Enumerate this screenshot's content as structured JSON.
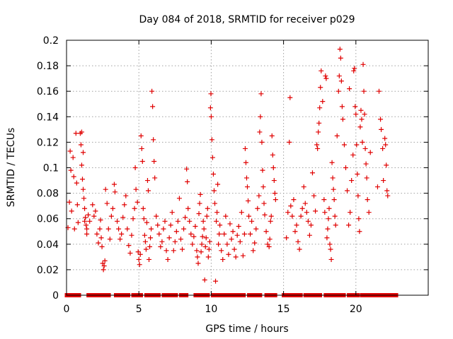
{
  "chart_data": {
    "type": "scatter",
    "title": "Day 084 of 2018, SRMTID for receiver p029",
    "xlabel": "GPS time / hours",
    "ylabel": "SRMTID / TECUs",
    "xlim": [
      0,
      25
    ],
    "ylim": [
      0,
      0.2
    ],
    "x_ticks": [
      0,
      5,
      10,
      15,
      20
    ],
    "x_tick_labels": [
      "0",
      "5",
      "10",
      "15",
      "20"
    ],
    "y_ticks": [
      0,
      0.02,
      0.04,
      0.06,
      0.08,
      0.1,
      0.12,
      0.14,
      0.16,
      0.18,
      0.2
    ],
    "y_tick_labels": [
      "0",
      "0.02",
      "0.04",
      "0.06",
      "0.08",
      "0.1",
      "0.12",
      "0.14",
      "0.16",
      "0.18",
      "0.2"
    ],
    "grid": true,
    "marker": "plus",
    "color": "#e00000",
    "zero_runs": [
      [
        0.0,
        0.9
      ],
      [
        1.5,
        3.0
      ],
      [
        3.4,
        4.3
      ],
      [
        4.6,
        5.2
      ],
      [
        5.5,
        6.4
      ],
      [
        6.7,
        7.6
      ],
      [
        7.9,
        8.3
      ],
      [
        8.9,
        9.8
      ],
      [
        10.1,
        11.1
      ],
      [
        11.3,
        12.3
      ],
      [
        12.6,
        13.4
      ],
      [
        13.8,
        14.5
      ],
      [
        15.0,
        16.2
      ],
      [
        16.5,
        17.6
      ],
      [
        17.9,
        19.2
      ],
      [
        19.5,
        20.2
      ],
      [
        20.4,
        22.8
      ]
    ],
    "series": [
      {
        "name": "SRMTID",
        "points": [
          [
            0.1,
            0.053
          ],
          [
            0.2,
            0.073
          ],
          [
            0.25,
            0.113
          ],
          [
            0.3,
            0.098
          ],
          [
            0.35,
            0.066
          ],
          [
            0.45,
            0.108
          ],
          [
            0.5,
            0.093
          ],
          [
            0.55,
            0.052
          ],
          [
            0.65,
            0.127
          ],
          [
            0.7,
            0.088
          ],
          [
            0.75,
            0.071
          ],
          [
            0.8,
            0.057
          ],
          [
            0.95,
            0.127
          ],
          [
            1.0,
            0.118
          ],
          [
            1.05,
            0.102
          ],
          [
            1.1,
            0.091
          ],
          [
            1.15,
            0.083
          ],
          [
            1.2,
            0.076
          ],
          [
            1.25,
            0.068
          ],
          [
            1.3,
            0.061
          ],
          [
            1.35,
            0.055
          ],
          [
            1.4,
            0.048
          ],
          [
            1.05,
            0.128
          ],
          [
            1.15,
            0.112
          ],
          [
            1.25,
            0.058
          ],
          [
            1.4,
            0.052
          ],
          [
            1.5,
            0.063
          ],
          [
            1.6,
            0.058
          ],
          [
            1.8,
            0.071
          ],
          [
            1.9,
            0.062
          ],
          [
            2.0,
            0.066
          ],
          [
            2.1,
            0.048
          ],
          [
            2.2,
            0.041
          ],
          [
            2.3,
            0.052
          ],
          [
            2.35,
            0.059
          ],
          [
            2.4,
            0.045
          ],
          [
            2.45,
            0.038
          ],
          [
            2.5,
            0.025
          ],
          [
            2.55,
            0.02
          ],
          [
            2.6,
            0.023
          ],
          [
            2.65,
            0.027
          ],
          [
            2.7,
            0.083
          ],
          [
            2.8,
            0.072
          ],
          [
            2.9,
            0.052
          ],
          [
            3.0,
            0.044
          ],
          [
            3.1,
            0.062
          ],
          [
            3.2,
            0.068
          ],
          [
            3.3,
            0.087
          ],
          [
            3.35,
            0.081
          ],
          [
            3.5,
            0.058
          ],
          [
            3.6,
            0.052
          ],
          [
            3.7,
            0.044
          ],
          [
            3.8,
            0.048
          ],
          [
            3.9,
            0.061
          ],
          [
            4.0,
            0.071
          ],
          [
            4.1,
            0.078
          ],
          [
            4.2,
            0.052
          ],
          [
            4.3,
            0.039
          ],
          [
            4.4,
            0.033
          ],
          [
            4.5,
            0.047
          ],
          [
            4.6,
            0.06
          ],
          [
            4.7,
            0.068
          ],
          [
            4.75,
            0.1
          ],
          [
            4.8,
            0.083
          ],
          [
            4.9,
            0.073
          ],
          [
            4.95,
            0.034
          ],
          [
            5.0,
            0.028
          ],
          [
            5.05,
            0.024
          ],
          [
            5.1,
            0.032
          ],
          [
            5.15,
            0.125
          ],
          [
            5.2,
            0.115
          ],
          [
            5.25,
            0.105
          ],
          [
            5.3,
            0.068
          ],
          [
            5.35,
            0.06
          ],
          [
            5.4,
            0.047
          ],
          [
            5.45,
            0.042
          ],
          [
            5.5,
            0.036
          ],
          [
            5.55,
            0.057
          ],
          [
            5.6,
            0.09
          ],
          [
            5.65,
            0.082
          ],
          [
            5.7,
            0.028
          ],
          [
            5.75,
            0.038
          ],
          [
            5.8,
            0.045
          ],
          [
            5.85,
            0.052
          ],
          [
            5.9,
            0.16
          ],
          [
            5.95,
            0.148
          ],
          [
            6.0,
            0.122
          ],
          [
            6.05,
            0.105
          ],
          [
            6.1,
            0.092
          ],
          [
            6.2,
            0.062
          ],
          [
            6.3,
            0.055
          ],
          [
            6.4,
            0.048
          ],
          [
            6.5,
            0.038
          ],
          [
            6.6,
            0.042
          ],
          [
            6.7,
            0.052
          ],
          [
            6.8,
            0.058
          ],
          [
            6.9,
            0.035
          ],
          [
            7.0,
            0.028
          ],
          [
            7.1,
            0.045
          ],
          [
            7.2,
            0.055
          ],
          [
            7.3,
            0.065
          ],
          [
            7.4,
            0.035
          ],
          [
            7.5,
            0.042
          ],
          [
            7.6,
            0.05
          ],
          [
            7.7,
            0.058
          ],
          [
            7.8,
            0.076
          ],
          [
            7.9,
            0.044
          ],
          [
            8.0,
            0.036
          ],
          [
            8.1,
            0.052
          ],
          [
            8.2,
            0.061
          ],
          [
            8.3,
            0.099
          ],
          [
            8.35,
            0.089
          ],
          [
            8.4,
            0.068
          ],
          [
            8.5,
            0.058
          ],
          [
            8.6,
            0.048
          ],
          [
            8.7,
            0.04
          ],
          [
            8.8,
            0.046
          ],
          [
            8.9,
            0.054
          ],
          [
            9.0,
            0.035
          ],
          [
            9.05,
            0.03
          ],
          [
            9.1,
            0.025
          ],
          [
            9.15,
            0.064
          ],
          [
            9.2,
            0.072
          ],
          [
            9.25,
            0.079
          ],
          [
            9.3,
            0.034
          ],
          [
            9.35,
            0.04
          ],
          [
            9.4,
            0.046
          ],
          [
            9.45,
            0.058
          ],
          [
            9.5,
            0.052
          ],
          [
            9.55,
            0.012
          ],
          [
            9.6,
            0.038
          ],
          [
            9.65,
            0.045
          ],
          [
            9.7,
            0.062
          ],
          [
            9.75,
            0.068
          ],
          [
            9.8,
            0.03
          ],
          [
            9.85,
            0.036
          ],
          [
            9.9,
            0.042
          ],
          [
            9.95,
            0.147
          ],
          [
            10.0,
            0.14
          ],
          [
            10.05,
            0.122
          ],
          [
            10.1,
            0.108
          ],
          [
            10.15,
            0.095
          ],
          [
            10.2,
            0.082
          ],
          [
            10.25,
            0.072
          ],
          [
            9.98,
            0.158
          ],
          [
            10.3,
            0.011
          ],
          [
            10.35,
            0.058
          ],
          [
            10.4,
            0.065
          ],
          [
            10.45,
            0.087
          ],
          [
            10.5,
            0.04
          ],
          [
            10.55,
            0.048
          ],
          [
            10.6,
            0.055
          ],
          [
            10.7,
            0.035
          ],
          [
            10.8,
            0.028
          ],
          [
            10.9,
            0.048
          ],
          [
            11.0,
            0.062
          ],
          [
            11.1,
            0.04
          ],
          [
            11.2,
            0.032
          ],
          [
            11.3,
            0.056
          ],
          [
            11.4,
            0.044
          ],
          [
            11.5,
            0.05
          ],
          [
            11.6,
            0.036
          ],
          [
            11.7,
            0.03
          ],
          [
            11.8,
            0.047
          ],
          [
            11.9,
            0.054
          ],
          [
            12.0,
            0.042
          ],
          [
            12.1,
            0.065
          ],
          [
            12.2,
            0.031
          ],
          [
            12.3,
            0.048
          ],
          [
            12.35,
            0.115
          ],
          [
            12.4,
            0.104
          ],
          [
            12.45,
            0.092
          ],
          [
            12.5,
            0.085
          ],
          [
            12.55,
            0.074
          ],
          [
            12.6,
            0.062
          ],
          [
            12.7,
            0.048
          ],
          [
            12.8,
            0.058
          ],
          [
            12.9,
            0.035
          ],
          [
            13.0,
            0.041
          ],
          [
            13.1,
            0.052
          ],
          [
            13.2,
            0.068
          ],
          [
            13.3,
            0.078
          ],
          [
            13.35,
            0.128
          ],
          [
            13.4,
            0.14
          ],
          [
            13.45,
            0.158
          ],
          [
            13.5,
            0.12
          ],
          [
            13.55,
            0.098
          ],
          [
            13.6,
            0.085
          ],
          [
            13.65,
            0.072
          ],
          [
            13.7,
            0.063
          ],
          [
            13.8,
            0.05
          ],
          [
            13.9,
            0.04
          ],
          [
            14.0,
            0.038
          ],
          [
            14.05,
            0.044
          ],
          [
            14.1,
            0.058
          ],
          [
            14.15,
            0.062
          ],
          [
            14.2,
            0.125
          ],
          [
            14.25,
            0.11
          ],
          [
            14.3,
            0.1
          ],
          [
            14.35,
            0.09
          ],
          [
            14.4,
            0.08
          ],
          [
            14.45,
            0.075
          ],
          [
            15.2,
            0.045
          ],
          [
            15.3,
            0.065
          ],
          [
            15.4,
            0.12
          ],
          [
            15.45,
            0.155
          ],
          [
            15.5,
            0.07
          ],
          [
            15.6,
            0.062
          ],
          [
            15.7,
            0.075
          ],
          [
            15.8,
            0.05
          ],
          [
            15.9,
            0.055
          ],
          [
            16.0,
            0.042
          ],
          [
            16.1,
            0.036
          ],
          [
            16.2,
            0.062
          ],
          [
            16.3,
            0.068
          ],
          [
            16.4,
            0.085
          ],
          [
            16.5,
            0.072
          ],
          [
            16.6,
            0.065
          ],
          [
            16.7,
            0.058
          ],
          [
            16.8,
            0.047
          ],
          [
            16.9,
            0.055
          ],
          [
            17.0,
            0.096
          ],
          [
            17.1,
            0.078
          ],
          [
            17.2,
            0.066
          ],
          [
            17.3,
            0.118
          ],
          [
            17.35,
            0.115
          ],
          [
            17.4,
            0.128
          ],
          [
            17.45,
            0.135
          ],
          [
            17.5,
            0.147
          ],
          [
            17.55,
            0.163
          ],
          [
            17.6,
            0.176
          ],
          [
            17.7,
            0.152
          ],
          [
            17.8,
            0.075
          ],
          [
            17.85,
            0.065
          ],
          [
            17.9,
            0.172
          ],
          [
            17.95,
            0.17
          ],
          [
            18.0,
            0.045
          ],
          [
            18.05,
            0.052
          ],
          [
            18.1,
            0.06
          ],
          [
            18.15,
            0.068
          ],
          [
            18.2,
            0.04
          ],
          [
            18.25,
            0.036
          ],
          [
            18.3,
            0.028
          ],
          [
            18.35,
            0.104
          ],
          [
            18.4,
            0.092
          ],
          [
            18.45,
            0.083
          ],
          [
            18.5,
            0.075
          ],
          [
            18.55,
            0.062
          ],
          [
            18.6,
            0.055
          ],
          [
            18.7,
            0.125
          ],
          [
            18.8,
            0.16
          ],
          [
            18.85,
            0.172
          ],
          [
            18.9,
            0.193
          ],
          [
            18.95,
            0.186
          ],
          [
            19.0,
            0.168
          ],
          [
            19.05,
            0.148
          ],
          [
            19.1,
            0.138
          ],
          [
            19.2,
            0.118
          ],
          [
            19.3,
            0.1
          ],
          [
            19.4,
            0.082
          ],
          [
            19.5,
            0.055
          ],
          [
            19.55,
            0.162
          ],
          [
            19.6,
            0.065
          ],
          [
            19.7,
            0.09
          ],
          [
            19.8,
            0.11
          ],
          [
            19.85,
            0.176
          ],
          [
            19.9,
            0.178
          ],
          [
            19.95,
            0.148
          ],
          [
            20.0,
            0.142
          ],
          [
            20.05,
            0.118
          ],
          [
            20.1,
            0.095
          ],
          [
            20.15,
            0.078
          ],
          [
            20.2,
            0.06
          ],
          [
            20.25,
            0.05
          ],
          [
            20.3,
            0.132
          ],
          [
            20.35,
            0.145
          ],
          [
            20.4,
            0.138
          ],
          [
            20.45,
            0.12
          ],
          [
            20.5,
            0.181
          ],
          [
            20.55,
            0.16
          ],
          [
            20.6,
            0.142
          ],
          [
            20.65,
            0.115
          ],
          [
            20.7,
            0.103
          ],
          [
            20.75,
            0.092
          ],
          [
            20.8,
            0.075
          ],
          [
            20.9,
            0.065
          ],
          [
            21.0,
            0.112
          ],
          [
            21.5,
            0.085
          ],
          [
            21.6,
            0.16
          ],
          [
            21.7,
            0.138
          ],
          [
            21.75,
            0.13
          ],
          [
            21.85,
            0.115
          ],
          [
            21.9,
            0.09
          ],
          [
            22.0,
            0.123
          ],
          [
            22.05,
            0.118
          ],
          [
            22.1,
            0.102
          ],
          [
            22.15,
            0.082
          ],
          [
            22.2,
            0.078
          ]
        ]
      }
    ]
  }
}
